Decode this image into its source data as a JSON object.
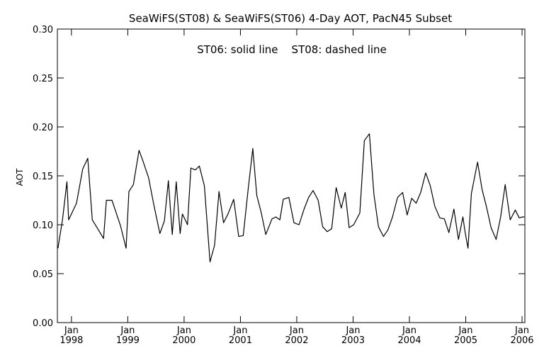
{
  "chart_data": {
    "type": "line",
    "title": "SeaWiFS(ST08) & SeaWiFS(ST06) 4-Day AOT, PacN45 Subset",
    "annotation": "ST06: solid line    ST08: dashed line",
    "ylabel": "AOT",
    "xlabel": "",
    "xlim": [
      1997.75,
      2006.05
    ],
    "ylim": [
      0.0,
      0.3
    ],
    "grid": false,
    "y_ticks": [
      "0.00",
      "0.05",
      "0.10",
      "0.15",
      "0.20",
      "0.25",
      "0.30"
    ],
    "x_ticks": [
      {
        "month": "Jan",
        "year": "1998",
        "x": 1998.0
      },
      {
        "month": "Jan",
        "year": "1999",
        "x": 1999.0
      },
      {
        "month": "Jan",
        "year": "2000",
        "x": 2000.0
      },
      {
        "month": "Jan",
        "year": "2001",
        "x": 2001.0
      },
      {
        "month": "Jan",
        "year": "2002",
        "x": 2002.0
      },
      {
        "month": "Jan",
        "year": "2003",
        "x": 2003.0
      },
      {
        "month": "Jan",
        "year": "2004",
        "x": 2004.0
      },
      {
        "month": "Jan",
        "year": "2005",
        "x": 2005.0
      },
      {
        "month": "Jan",
        "year": "2006",
        "x": 2006.0
      }
    ],
    "series": [
      {
        "name": "ST06",
        "style": "solid",
        "color": "#000000",
        "x": [
          1997.76,
          1997.84,
          1997.92,
          1997.95,
          1998.09,
          1998.2,
          1998.29,
          1998.37,
          1998.57,
          1998.62,
          1998.72,
          1998.87,
          1998.97,
          1999.02,
          1999.1,
          1999.2,
          1999.27,
          1999.37,
          1999.46,
          1999.57,
          1999.65,
          1999.72,
          1999.79,
          1999.86,
          1999.93,
          1999.97,
          2000.02,
          2000.06,
          2000.12,
          2000.2,
          2000.27,
          2000.36,
          2000.46,
          2000.54,
          2000.62,
          2000.7,
          2000.78,
          2000.88,
          2000.97,
          2001.05,
          2001.14,
          2001.22,
          2001.29,
          2001.37,
          2001.45,
          2001.56,
          2001.63,
          2001.7,
          2001.76,
          2001.86,
          2001.95,
          2002.04,
          2002.13,
          2002.21,
          2002.29,
          2002.38,
          2002.46,
          2002.54,
          2002.62,
          2002.7,
          2002.79,
          2002.86,
          2002.93,
          2003.01,
          2003.12,
          2003.2,
          2003.29,
          2003.37,
          2003.45,
          2003.54,
          2003.62,
          2003.7,
          2003.79,
          2003.88,
          2003.96,
          2004.04,
          2004.12,
          2004.2,
          2004.29,
          2004.37,
          2004.45,
          2004.54,
          2004.62,
          2004.7,
          2004.79,
          2004.87,
          2004.95,
          2004.99,
          2005.04,
          2005.1,
          2005.21,
          2005.29,
          2005.37,
          2005.45,
          2005.54,
          2005.62,
          2005.7,
          2005.79,
          2005.88,
          2005.95,
          2006.01,
          2006.04
        ],
        "y": [
          0.076,
          0.105,
          0.144,
          0.105,
          0.122,
          0.157,
          0.168,
          0.105,
          0.086,
          0.125,
          0.125,
          0.099,
          0.076,
          0.134,
          0.141,
          0.176,
          0.165,
          0.148,
          0.121,
          0.091,
          0.104,
          0.145,
          0.09,
          0.144,
          0.091,
          0.111,
          0.105,
          0.1,
          0.158,
          0.156,
          0.16,
          0.14,
          0.062,
          0.079,
          0.134,
          0.102,
          0.111,
          0.126,
          0.088,
          0.089,
          0.138,
          0.178,
          0.13,
          0.112,
          0.09,
          0.106,
          0.108,
          0.105,
          0.126,
          0.128,
          0.102,
          0.1,
          0.116,
          0.128,
          0.135,
          0.125,
          0.098,
          0.093,
          0.096,
          0.138,
          0.117,
          0.133,
          0.097,
          0.1,
          0.112,
          0.186,
          0.193,
          0.131,
          0.098,
          0.088,
          0.095,
          0.108,
          0.128,
          0.133,
          0.11,
          0.127,
          0.122,
          0.133,
          0.153,
          0.14,
          0.119,
          0.107,
          0.106,
          0.092,
          0.116,
          0.085,
          0.108,
          0.092,
          0.076,
          0.132,
          0.164,
          0.136,
          0.118,
          0.097,
          0.085,
          0.108,
          0.141,
          0.105,
          0.115,
          0.107,
          0.108,
          0.108
        ]
      }
    ]
  }
}
